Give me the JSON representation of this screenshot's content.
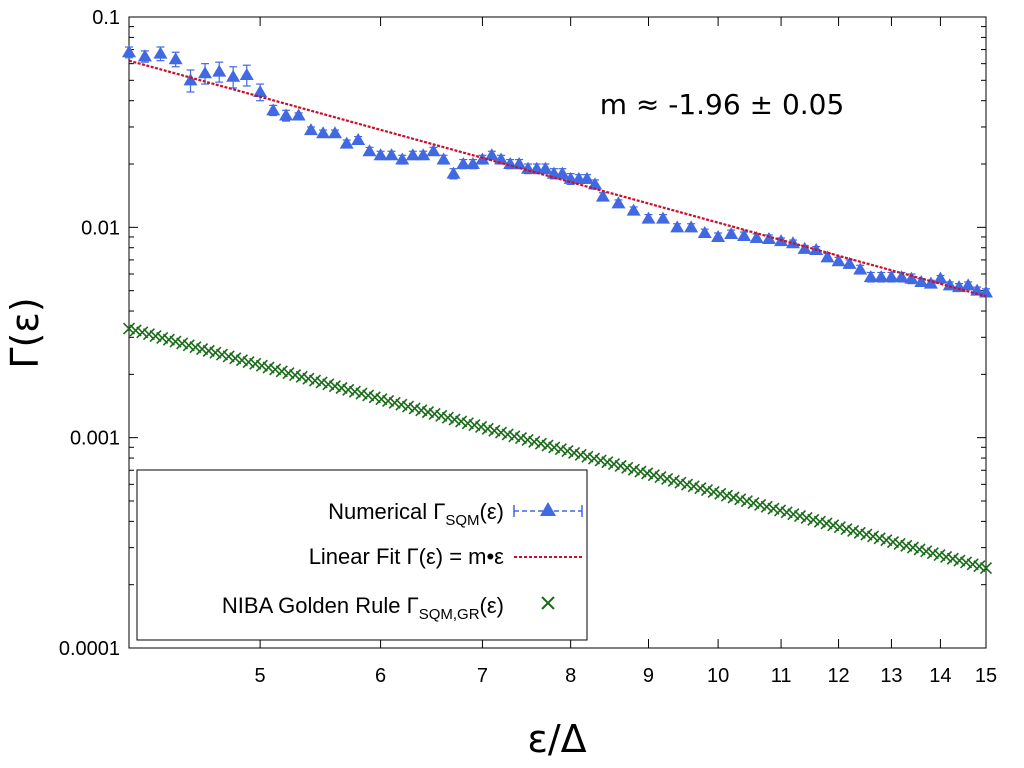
{
  "chart_data": {
    "type": "scatter",
    "x_scale": "log",
    "y_scale": "log",
    "xlim": [
      4.1,
      15
    ],
    "ylim": [
      0.0001,
      0.1
    ],
    "xlabel": "ε/Δ",
    "ylabel": "Γ(ε)",
    "x_ticks": [
      5,
      6,
      7,
      8,
      9,
      10,
      11,
      12,
      13,
      14,
      15
    ],
    "x_tick_labels": [
      "5",
      "6",
      "7",
      "8",
      "9",
      "10",
      "11",
      "12",
      "13",
      "14",
      "15"
    ],
    "y_ticks": [
      0.0001,
      0.001,
      0.01,
      0.1
    ],
    "y_tick_labels": [
      "0.0001",
      "0.001",
      "0.01",
      "0.1"
    ],
    "grid": false,
    "legend_position": "bottom-left",
    "annotation": "m ≈ -1.96 ± 0.05",
    "series": [
      {
        "name_main": "Numerical Γ",
        "name_sub": "SQM",
        "name_tail": "(ε)",
        "kind": "points-errorbars",
        "color": "#4169e1",
        "x": [
          4.1,
          4.2,
          4.3,
          4.4,
          4.5,
          4.6,
          4.7,
          4.8,
          4.9,
          5.0,
          5.1,
          5.2,
          5.3,
          5.4,
          5.5,
          5.6,
          5.7,
          5.8,
          5.9,
          6.0,
          6.1,
          6.2,
          6.3,
          6.4,
          6.5,
          6.6,
          6.7,
          6.8,
          6.9,
          7.0,
          7.1,
          7.2,
          7.3,
          7.4,
          7.5,
          7.6,
          7.7,
          7.8,
          7.9,
          8.0,
          8.1,
          8.2,
          8.3,
          8.4,
          8.6,
          8.8,
          9.0,
          9.2,
          9.4,
          9.6,
          9.8,
          10.0,
          10.2,
          10.4,
          10.6,
          10.8,
          11.0,
          11.2,
          11.4,
          11.6,
          11.8,
          12.0,
          12.2,
          12.4,
          12.6,
          12.8,
          13.0,
          13.2,
          13.4,
          13.6,
          13.8,
          14.0,
          14.2,
          14.4,
          14.6,
          14.8,
          15.0
        ],
        "y": [
          0.068,
          0.065,
          0.067,
          0.063,
          0.05,
          0.054,
          0.055,
          0.052,
          0.053,
          0.044,
          0.036,
          0.034,
          0.034,
          0.029,
          0.028,
          0.028,
          0.025,
          0.026,
          0.023,
          0.022,
          0.022,
          0.021,
          0.022,
          0.022,
          0.023,
          0.021,
          0.018,
          0.02,
          0.02,
          0.021,
          0.022,
          0.021,
          0.02,
          0.02,
          0.019,
          0.019,
          0.019,
          0.018,
          0.018,
          0.017,
          0.017,
          0.017,
          0.016,
          0.014,
          0.013,
          0.012,
          0.011,
          0.011,
          0.01,
          0.01,
          0.0094,
          0.009,
          0.0093,
          0.0091,
          0.0089,
          0.0088,
          0.0086,
          0.0084,
          0.0079,
          0.0078,
          0.0072,
          0.0069,
          0.0067,
          0.0063,
          0.0058,
          0.0058,
          0.0058,
          0.0058,
          0.0057,
          0.0055,
          0.0054,
          0.0057,
          0.0053,
          0.0052,
          0.0053,
          0.005,
          0.0049
        ],
        "yerr": [
          0.004,
          0.004,
          0.005,
          0.005,
          0.006,
          0.006,
          0.006,
          0.006,
          0.006,
          0.004,
          0.002,
          0.002,
          0.001,
          0.001,
          0.001,
          0.001,
          0.001,
          0.001,
          0.001,
          0.001,
          0.001,
          0.001,
          0.001,
          0.001,
          0.001,
          0.001,
          0.001,
          0.001,
          0.001,
          0.001,
          0.001,
          0.001,
          0.001,
          0.001,
          0.001,
          0.001,
          0.001,
          0.001,
          0.001,
          0.001,
          0.0008,
          0.0008,
          0.0008,
          0.0006,
          0.0005,
          0.0005,
          0.0005,
          0.0005,
          0.0004,
          0.0004,
          0.0004,
          0.0004,
          0.0004,
          0.0004,
          0.0004,
          0.0004,
          0.0003,
          0.0003,
          0.0003,
          0.0003,
          0.0003,
          0.0003,
          0.0003,
          0.0003,
          0.0003,
          0.0003,
          0.0003,
          0.0003,
          0.0003,
          0.0002,
          0.0002,
          0.0002,
          0.0002,
          0.0002,
          0.0002,
          0.0002,
          0.0002
        ]
      },
      {
        "name_main": "Linear Fit Γ(ε) = m•ε",
        "kind": "line",
        "color": "#c8102e",
        "x": [
          4.1,
          15
        ],
        "y": [
          0.062,
          0.0047
        ]
      },
      {
        "name_main": "NIBA Golden Rule Γ",
        "name_sub": "SQM,GR",
        "name_tail": "(ε)",
        "kind": "crosses",
        "color": "#1a6b1a",
        "x_start": 4.1,
        "x_end": 15,
        "point_count": 130,
        "y_start": 0.0033,
        "y_end": 0.00024
      }
    ]
  }
}
